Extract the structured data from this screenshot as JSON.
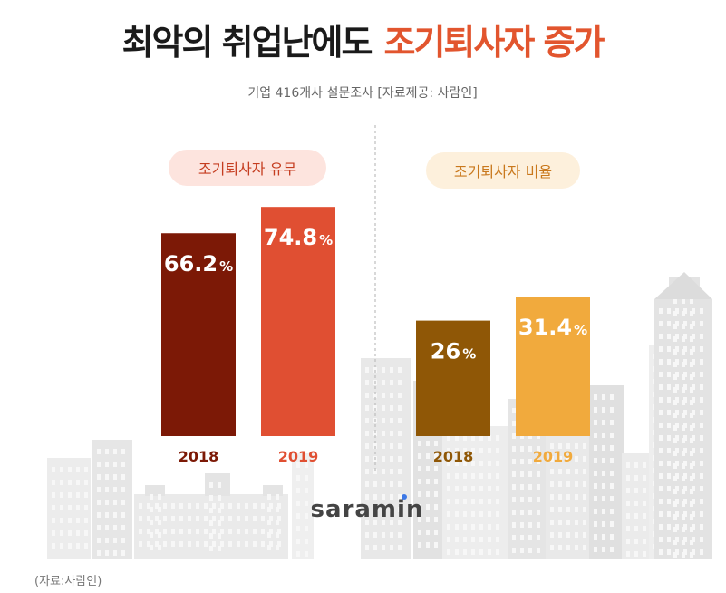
{
  "title": {
    "main": "최악의 취업난에도",
    "highlight": "조기퇴사자 증가"
  },
  "subtitle": "기업 416개사 설문조사  [자료제공: 사람인]",
  "brand": "saramin",
  "source_note": "(자료:사람인)",
  "colors": {
    "title_dark": "#1a1a1a",
    "title_accent": "#e2552e",
    "bar_2018_left": "#7c1906",
    "bar_2019_left": "#e04f32",
    "bar_2018_right": "#8f5706",
    "bar_2019_right": "#f1aa3d",
    "pill_left_bg": "#fde4de",
    "pill_right_bg": "#fdf0dc",
    "pill_left_text": "#c53d20",
    "pill_right_text": "#c9781c"
  },
  "chart_data": [
    {
      "type": "bar",
      "title": "조기퇴사자 유무",
      "categories": [
        "2018",
        "2019"
      ],
      "values": [
        66.2,
        74.8
      ],
      "labels": [
        "66.2",
        "74.8"
      ],
      "unit": "%"
    },
    {
      "type": "bar",
      "title": "조기퇴사자 비율",
      "categories": [
        "2018",
        "2019"
      ],
      "values": [
        26,
        31.4
      ],
      "labels": [
        "26",
        "31.4"
      ],
      "unit": "%"
    }
  ]
}
